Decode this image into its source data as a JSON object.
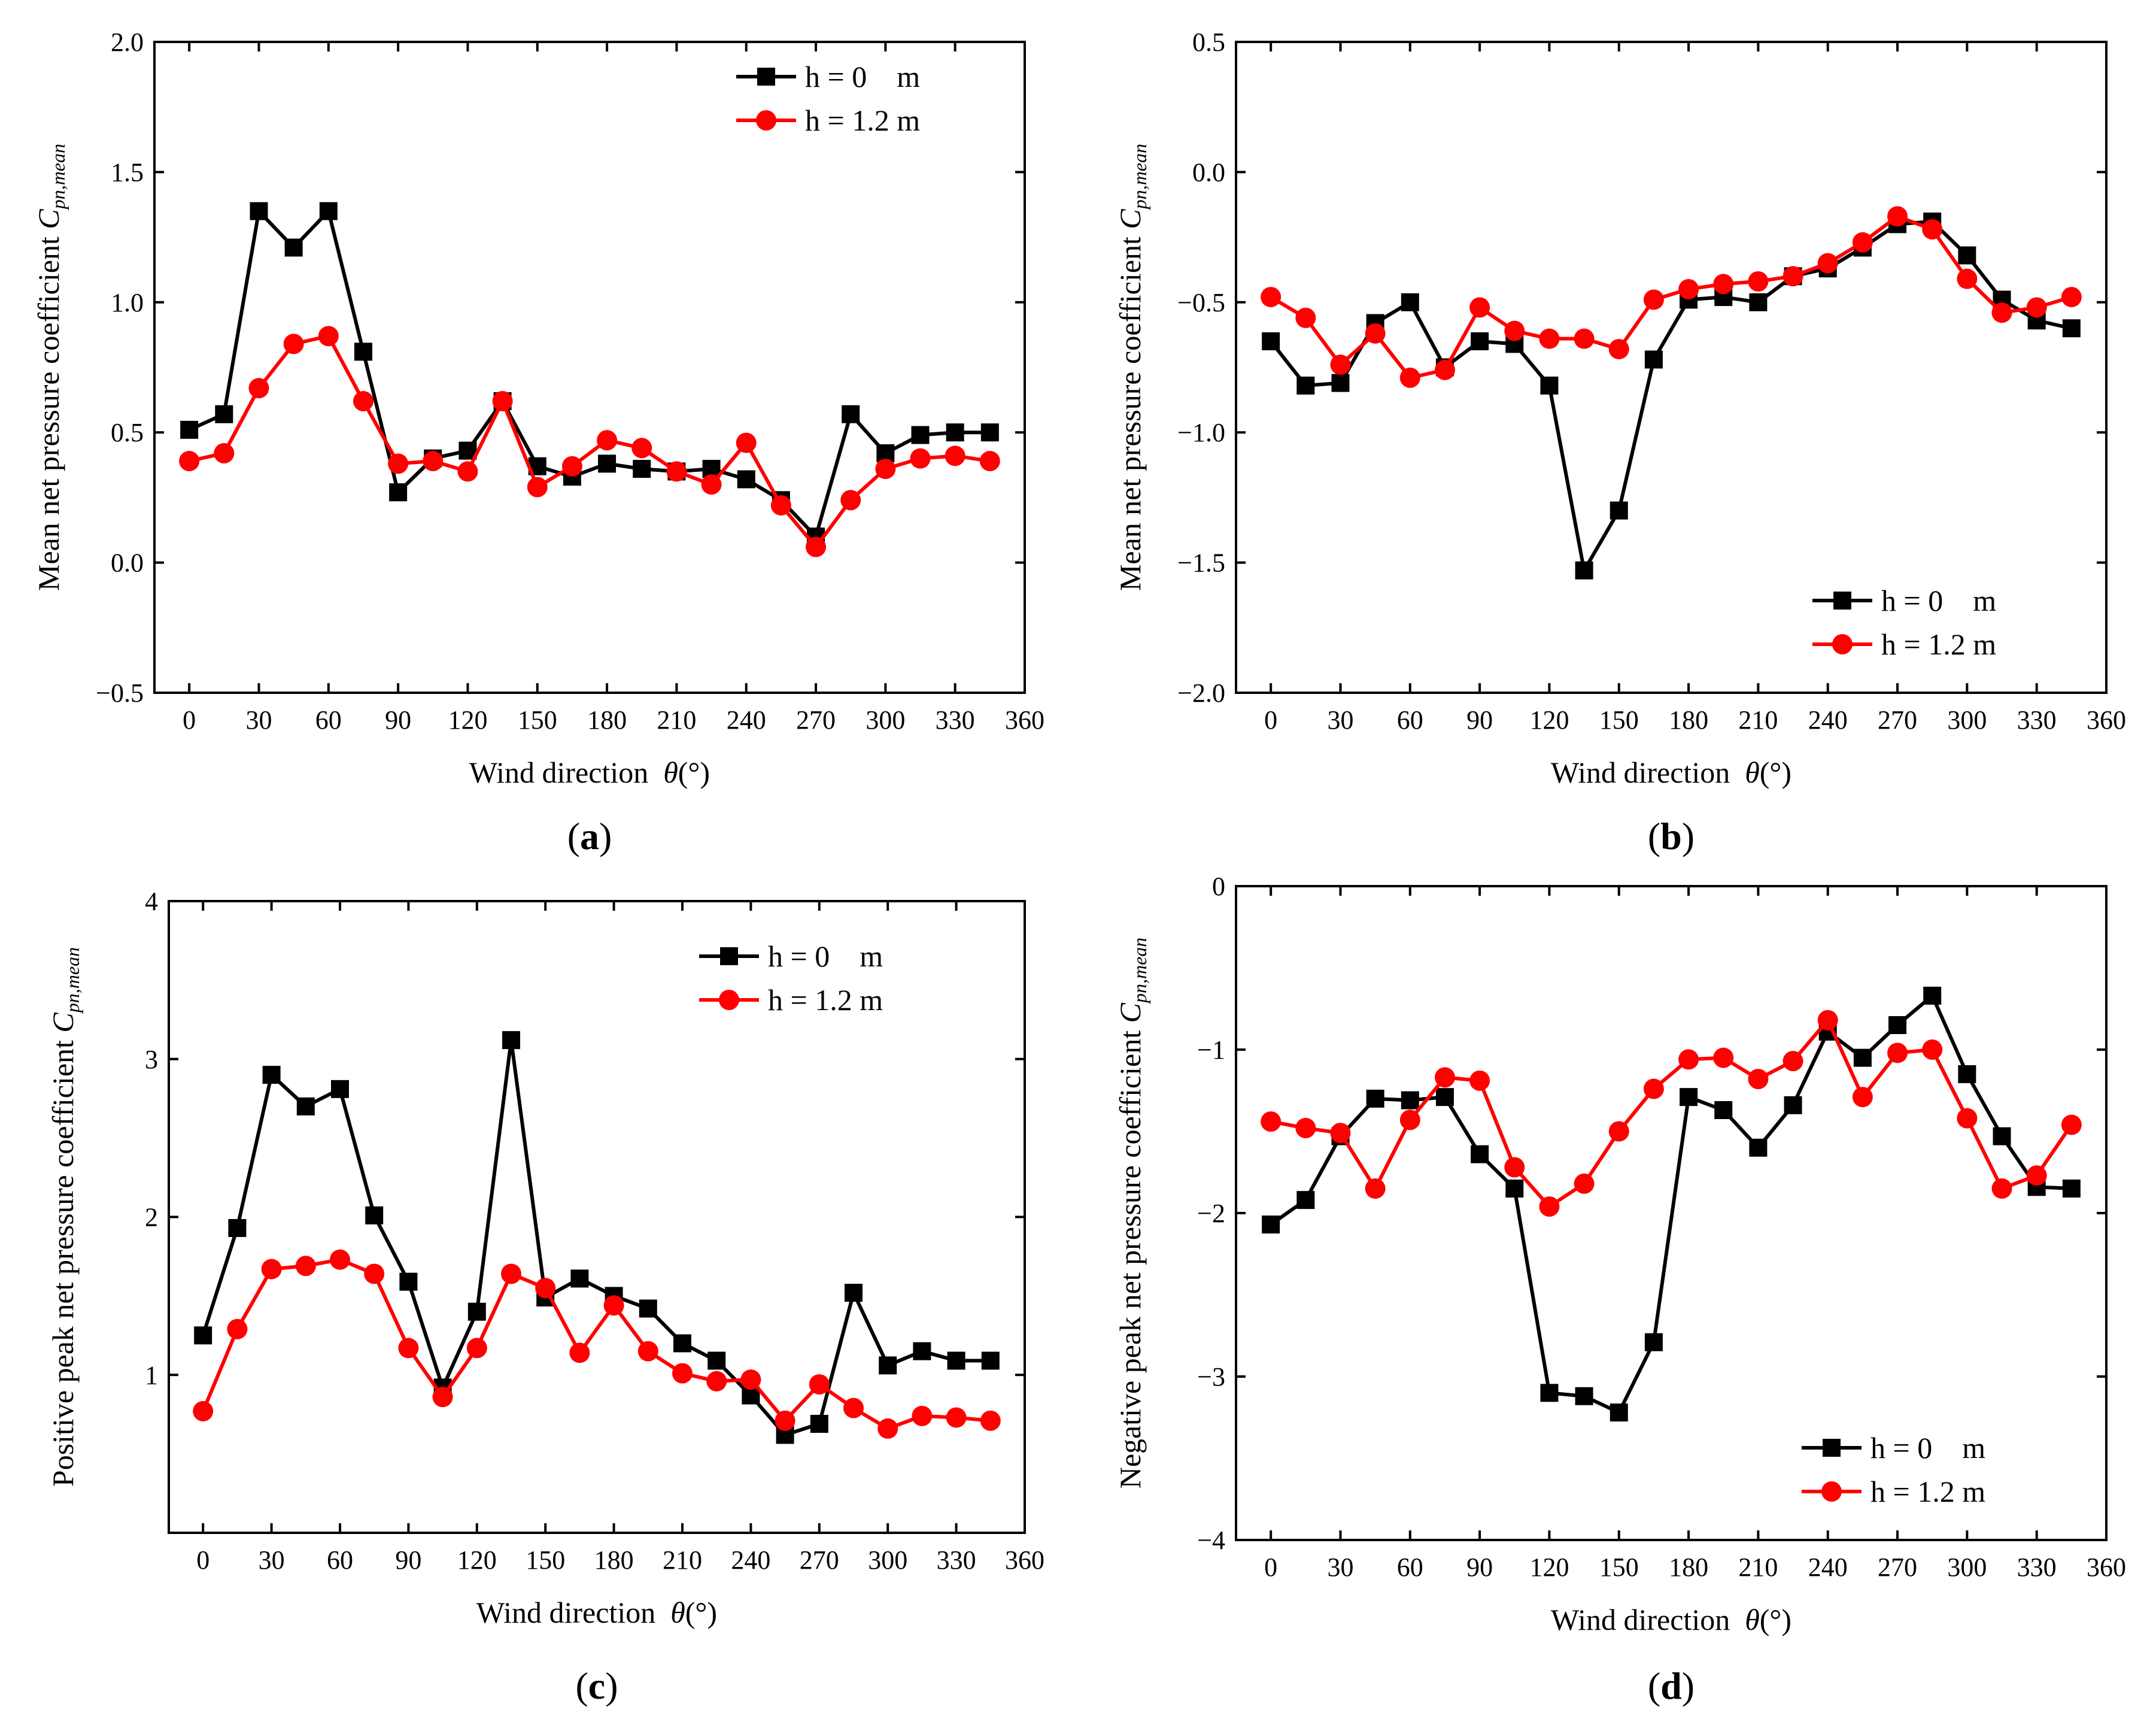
{
  "chart_data": [
    {
      "panel": "a",
      "panel_label_text": "a",
      "type": "line",
      "xlabel": "Wind direction",
      "xlabel_symbol": "θ",
      "xlabel_unit": "(°)",
      "ylabel": "Mean net pressure coefficient",
      "ylabel_symbol": "C",
      "ylabel_sub": "pn,mean",
      "xlim": [
        -15,
        360
      ],
      "ylim": [
        -0.5,
        2.0
      ],
      "xticks": [
        0,
        30,
        60,
        90,
        120,
        150,
        180,
        210,
        240,
        270,
        300,
        330,
        360
      ],
      "yticks": [
        -0.5,
        0.0,
        0.5,
        1.0,
        1.5,
        2.0
      ],
      "ytick_labels": [
        "−0.5",
        "0.0",
        "0.5",
        "1.0",
        "1.5",
        "2.0"
      ],
      "legend_position": "top-right",
      "x": [
        0,
        15,
        30,
        45,
        60,
        75,
        90,
        105,
        120,
        135,
        150,
        165,
        180,
        195,
        210,
        225,
        240,
        255,
        270,
        285,
        300,
        315,
        330,
        345
      ],
      "series": [
        {
          "name": "h = 0    m",
          "color": "#000000",
          "marker": "square",
          "values": [
            0.51,
            0.57,
            1.35,
            1.21,
            1.35,
            0.81,
            0.27,
            0.4,
            0.43,
            0.62,
            0.37,
            0.33,
            0.38,
            0.36,
            0.35,
            0.36,
            0.32,
            0.24,
            0.1,
            0.57,
            0.42,
            0.49,
            0.5,
            0.5
          ]
        },
        {
          "name": "h = 1.2 m",
          "color": "#ff0000",
          "marker": "circle",
          "values": [
            0.39,
            0.42,
            0.67,
            0.84,
            0.87,
            0.62,
            0.38,
            0.39,
            0.35,
            0.62,
            0.29,
            0.37,
            0.47,
            0.44,
            0.35,
            0.3,
            0.46,
            0.22,
            0.06,
            0.24,
            0.36,
            0.4,
            0.41,
            0.39
          ]
        }
      ]
    },
    {
      "panel": "b",
      "panel_label_text": "b",
      "type": "line",
      "xlabel": "Wind direction",
      "xlabel_symbol": "θ",
      "xlabel_unit": "(°)",
      "ylabel": "Mean net pressure coefficient",
      "ylabel_symbol": "C",
      "ylabel_sub": "pn,mean",
      "xlim": [
        -15,
        360
      ],
      "ylim": [
        -2.0,
        0.5
      ],
      "xticks": [
        0,
        30,
        60,
        90,
        120,
        150,
        180,
        210,
        240,
        270,
        300,
        330,
        360
      ],
      "yticks": [
        -2.0,
        -1.5,
        -1.0,
        -0.5,
        0.0,
        0.5
      ],
      "ytick_labels": [
        "−2.0",
        "−1.5",
        "−1.0",
        "−0.5",
        "0.0",
        "0.5"
      ],
      "legend_position": "bottom-right",
      "x": [
        0,
        15,
        30,
        45,
        60,
        75,
        90,
        105,
        120,
        135,
        150,
        165,
        180,
        195,
        210,
        225,
        240,
        255,
        270,
        285,
        300,
        315,
        330,
        345
      ],
      "series": [
        {
          "name": "h = 0    m",
          "color": "#000000",
          "marker": "square",
          "values": [
            -0.65,
            -0.82,
            -0.81,
            -0.58,
            -0.5,
            -0.75,
            -0.65,
            -0.66,
            -0.82,
            -1.53,
            -1.3,
            -0.72,
            -0.49,
            -0.48,
            -0.5,
            -0.4,
            -0.37,
            -0.29,
            -0.2,
            -0.19,
            -0.32,
            -0.49,
            -0.57,
            -0.6
          ]
        },
        {
          "name": "h = 1.2 m",
          "color": "#ff0000",
          "marker": "circle",
          "values": [
            -0.48,
            -0.56,
            -0.74,
            -0.62,
            -0.79,
            -0.76,
            -0.52,
            -0.61,
            -0.64,
            -0.64,
            -0.68,
            -0.49,
            -0.45,
            -0.43,
            -0.42,
            -0.4,
            -0.35,
            -0.27,
            -0.17,
            -0.22,
            -0.41,
            -0.54,
            -0.52,
            -0.48
          ]
        }
      ]
    },
    {
      "panel": "c",
      "panel_label_text": "c",
      "type": "line",
      "xlabel": "Wind direction",
      "xlabel_symbol": "θ",
      "xlabel_unit": "(°)",
      "ylabel": "Positive peak net pressure coefficient",
      "ylabel_symbol": "C",
      "ylabel_sub": "pn,mean",
      "xlim": [
        -15,
        360
      ],
      "ylim": [
        0,
        4
      ],
      "xticks": [
        0,
        30,
        60,
        90,
        120,
        150,
        180,
        210,
        240,
        270,
        300,
        330,
        360
      ],
      "yticks": [
        1,
        2,
        3,
        4
      ],
      "ytick_labels": [
        "1",
        "2",
        "3",
        "4"
      ],
      "legend_position": "top-right",
      "x": [
        0,
        15,
        30,
        45,
        60,
        75,
        90,
        105,
        120,
        135,
        150,
        165,
        180,
        195,
        210,
        225,
        240,
        255,
        270,
        285,
        300,
        315,
        330,
        345
      ],
      "series": [
        {
          "name": "h = 0    m",
          "color": "#000000",
          "marker": "square",
          "values": [
            1.25,
            1.93,
            2.9,
            2.7,
            2.81,
            2.01,
            1.59,
            0.92,
            1.4,
            3.12,
            1.49,
            1.61,
            1.5,
            1.42,
            1.2,
            1.09,
            0.87,
            0.62,
            0.69,
            1.52,
            1.06,
            1.15,
            1.09,
            1.09
          ]
        },
        {
          "name": "h = 1.2 m",
          "color": "#ff0000",
          "marker": "circle",
          "values": [
            0.77,
            1.29,
            1.67,
            1.69,
            1.73,
            1.64,
            1.17,
            0.86,
            1.17,
            1.64,
            1.55,
            1.14,
            1.44,
            1.15,
            1.01,
            0.96,
            0.97,
            0.71,
            0.94,
            0.79,
            0.66,
            0.74,
            0.73,
            0.71
          ]
        }
      ]
    },
    {
      "panel": "d",
      "panel_label_text": "d",
      "type": "line",
      "xlabel": "Wind direction",
      "xlabel_symbol": "θ",
      "xlabel_unit": "(°)",
      "ylabel": "Negative peak net pressure coefficient",
      "ylabel_symbol": "C",
      "ylabel_sub": "pn,mean",
      "xlim": [
        -15,
        360
      ],
      "ylim": [
        -4,
        0
      ],
      "xticks": [
        0,
        30,
        60,
        90,
        120,
        150,
        180,
        210,
        240,
        270,
        300,
        330,
        360
      ],
      "yticks": [
        -4,
        -3,
        -2,
        -1,
        0
      ],
      "ytick_labels": [
        "−4",
        "−3",
        "−2",
        "−1",
        "0"
      ],
      "legend_position": "bottom-right",
      "x": [
        0,
        15,
        30,
        45,
        60,
        75,
        90,
        105,
        120,
        135,
        150,
        165,
        180,
        195,
        210,
        225,
        240,
        255,
        270,
        285,
        300,
        315,
        330,
        345
      ],
      "series": [
        {
          "name": "h = 0    m",
          "color": "#000000",
          "marker": "square",
          "values": [
            -2.07,
            -1.92,
            -1.53,
            -1.3,
            -1.31,
            -1.29,
            -1.64,
            -1.85,
            -3.1,
            -3.12,
            -3.22,
            -2.79,
            -1.29,
            -1.37,
            -1.6,
            -1.34,
            -0.89,
            -1.05,
            -0.85,
            -0.67,
            -1.15,
            -1.53,
            -1.84,
            -1.85
          ]
        },
        {
          "name": "h = 1.2 m",
          "color": "#ff0000",
          "marker": "circle",
          "values": [
            -1.44,
            -1.48,
            -1.51,
            -1.85,
            -1.43,
            -1.17,
            -1.19,
            -1.72,
            -1.96,
            -1.82,
            -1.5,
            -1.24,
            -1.06,
            -1.05,
            -1.18,
            -1.07,
            -0.82,
            -1.29,
            -1.02,
            -1.0,
            -1.42,
            -1.85,
            -1.77,
            -1.46
          ]
        }
      ]
    }
  ]
}
